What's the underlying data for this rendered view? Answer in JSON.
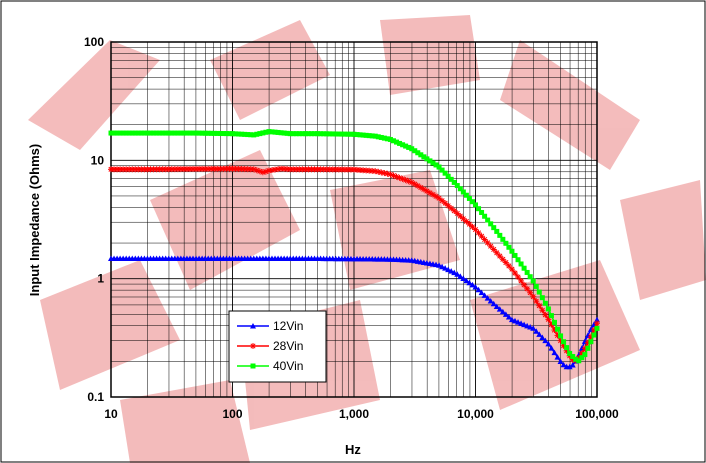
{
  "chart_data": {
    "type": "line",
    "title": "",
    "xlabel": "Hz",
    "ylabel": "Input Impedance (Ohms)",
    "x_scale": "log",
    "y_scale": "log",
    "xlim": [
      10,
      100000
    ],
    "ylim": [
      0.1,
      100
    ],
    "x_ticks": [
      {
        "value": 10,
        "label": "10"
      },
      {
        "value": 100,
        "label": "100"
      },
      {
        "value": 1000,
        "label": "1,000"
      },
      {
        "value": 10000,
        "label": "10,000"
      },
      {
        "value": 100000,
        "label": "100,000"
      }
    ],
    "y_ticks": [
      {
        "value": 0.1,
        "label": "0.1"
      },
      {
        "value": 1,
        "label": "1"
      },
      {
        "value": 10,
        "label": "10"
      },
      {
        "value": 100,
        "label": "100"
      }
    ],
    "grid": true,
    "legend_position": "bottom-left",
    "series": [
      {
        "name": "12Vin",
        "color": "#0000ff",
        "marker": "triangle",
        "x": [
          10,
          20,
          50,
          100,
          200,
          500,
          1000,
          2000,
          3000,
          5000,
          7000,
          10000,
          15000,
          20000,
          30000,
          40000,
          50000,
          55000,
          60000,
          65000,
          70000,
          80000,
          90000,
          100000
        ],
        "y": [
          1.48,
          1.48,
          1.48,
          1.48,
          1.48,
          1.48,
          1.47,
          1.46,
          1.43,
          1.3,
          1.1,
          0.85,
          0.58,
          0.45,
          0.38,
          0.28,
          0.2,
          0.18,
          0.18,
          0.19,
          0.22,
          0.3,
          0.38,
          0.45
        ]
      },
      {
        "name": "28Vin",
        "color": "#ff0000",
        "marker": "star",
        "x": [
          10,
          20,
          50,
          100,
          150,
          180,
          200,
          250,
          300,
          500,
          1000,
          1500,
          2000,
          3000,
          5000,
          7000,
          10000,
          15000,
          20000,
          30000,
          40000,
          50000,
          60000,
          65000,
          70000,
          80000,
          90000,
          100000
        ],
        "y": [
          8.4,
          8.4,
          8.45,
          8.5,
          8.4,
          7.9,
          8.2,
          8.5,
          8.4,
          8.4,
          8.35,
          8.1,
          7.6,
          6.5,
          4.8,
          3.6,
          2.6,
          1.65,
          1.2,
          0.7,
          0.45,
          0.3,
          0.22,
          0.2,
          0.21,
          0.26,
          0.33,
          0.42
        ]
      },
      {
        "name": "40Vin",
        "color": "#00ff00",
        "marker": "square",
        "x": [
          10,
          20,
          50,
          100,
          150,
          200,
          300,
          500,
          1000,
          1500,
          2000,
          3000,
          5000,
          7000,
          10000,
          15000,
          20000,
          30000,
          40000,
          50000,
          60000,
          70000,
          80000,
          90000,
          100000
        ],
        "y": [
          17,
          17,
          17,
          16.8,
          16.4,
          17.5,
          16.8,
          16.8,
          16.6,
          16,
          15,
          12.5,
          8.8,
          6.2,
          4.2,
          2.5,
          1.7,
          0.95,
          0.55,
          0.33,
          0.23,
          0.2,
          0.23,
          0.3,
          0.38
        ]
      }
    ]
  }
}
